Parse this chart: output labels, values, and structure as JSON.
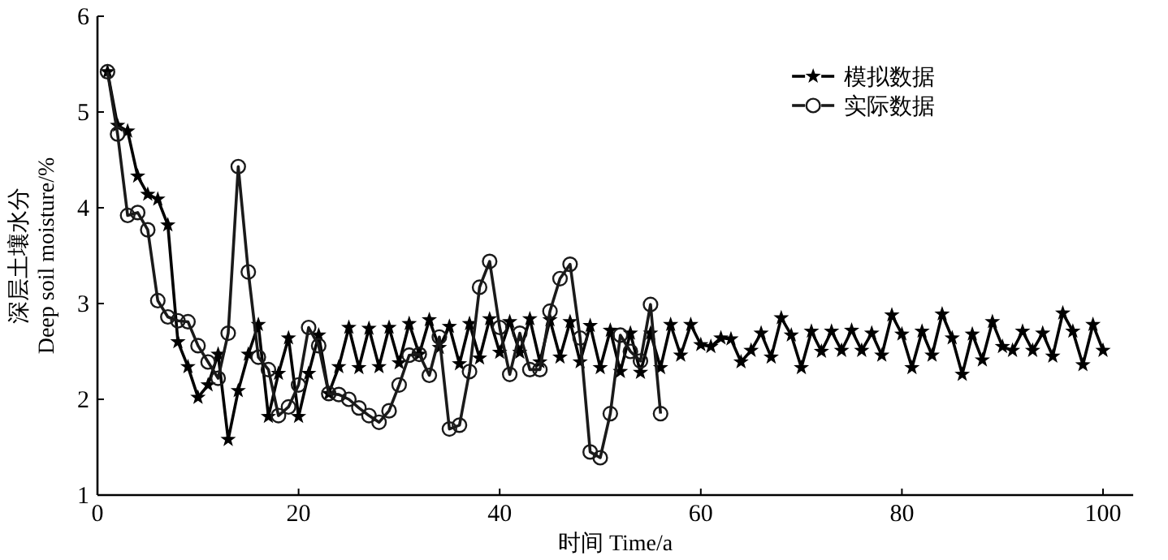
{
  "chart_data": {
    "type": "line",
    "xlabel": "时间 Time/a",
    "ylabel": "深层土壤水分\nDeep soil moisture/%",
    "xlim": [
      0,
      103
    ],
    "xticks": [
      0,
      20,
      40,
      60,
      80,
      100
    ],
    "ylim": [
      1,
      6
    ],
    "yticks": [
      1,
      2,
      3,
      4,
      5,
      6
    ],
    "grid": false,
    "legend": "top right",
    "series": [
      {
        "name": "模拟数据",
        "color": "#000000",
        "marker": "star",
        "x": [
          1,
          2,
          3,
          4,
          5,
          6,
          7,
          8,
          9,
          10,
          11,
          12,
          13,
          14,
          15,
          16,
          17,
          18,
          19,
          20,
          21,
          22,
          23,
          24,
          25,
          26,
          27,
          28,
          29,
          30,
          31,
          32,
          33,
          34,
          35,
          36,
          37,
          38,
          39,
          40,
          41,
          42,
          43,
          44,
          45,
          46,
          47,
          48,
          49,
          50,
          51,
          52,
          53,
          54,
          55,
          56,
          57,
          58,
          59,
          60,
          61,
          62,
          63,
          64,
          65,
          66,
          67,
          68,
          69,
          70,
          71,
          72,
          73,
          74,
          75,
          76,
          77,
          78,
          79,
          80,
          81,
          82,
          83,
          84,
          85,
          86,
          87,
          88,
          89,
          90,
          91,
          92,
          93,
          94,
          95,
          96,
          97,
          98,
          99,
          100
        ],
        "values": [
          5.42,
          4.86,
          4.8,
          4.33,
          4.14,
          4.09,
          3.82,
          2.6,
          2.34,
          2.02,
          2.15,
          2.47,
          1.58,
          2.09,
          2.47,
          2.78,
          1.82,
          2.27,
          2.64,
          1.82,
          2.27,
          2.67,
          2.06,
          2.34,
          2.75,
          2.33,
          2.74,
          2.34,
          2.75,
          2.38,
          2.79,
          2.47,
          2.83,
          2.54,
          2.76,
          2.37,
          2.79,
          2.43,
          2.84,
          2.49,
          2.81,
          2.49,
          2.84,
          2.39,
          2.83,
          2.44,
          2.81,
          2.39,
          2.77,
          2.33,
          2.72,
          2.29,
          2.69,
          2.28,
          2.69,
          2.33,
          2.78,
          2.46,
          2.78,
          2.57,
          2.55,
          2.64,
          2.63,
          2.39,
          2.51,
          2.69,
          2.44,
          2.85,
          2.67,
          2.33,
          2.71,
          2.5,
          2.71,
          2.51,
          2.72,
          2.51,
          2.69,
          2.46,
          2.88,
          2.68,
          2.33,
          2.71,
          2.46,
          2.89,
          2.64,
          2.26,
          2.68,
          2.41,
          2.81,
          2.55,
          2.51,
          2.71,
          2.51,
          2.69,
          2.45,
          2.9,
          2.71,
          2.36,
          2.78,
          2.51
        ]
      },
      {
        "name": "实际数据",
        "color": "#1a1a1a",
        "marker": "circle",
        "x": [
          1,
          2,
          3,
          4,
          5,
          6,
          7,
          8,
          9,
          10,
          11,
          12,
          13,
          14,
          15,
          16,
          17,
          18,
          19,
          20,
          21,
          22,
          23,
          24,
          25,
          26,
          27,
          28,
          29,
          30,
          31,
          32,
          33,
          34,
          35,
          36,
          37,
          38,
          39,
          40,
          41,
          42,
          43,
          44,
          45,
          46,
          47,
          48,
          49,
          50,
          51,
          52,
          53,
          54,
          55,
          56
        ],
        "values": [
          5.42,
          4.77,
          3.92,
          3.95,
          3.77,
          3.03,
          2.86,
          2.82,
          2.81,
          2.56,
          2.39,
          2.22,
          2.69,
          4.43,
          3.33,
          2.44,
          2.31,
          1.83,
          1.92,
          2.15,
          2.75,
          2.56,
          2.06,
          2.05,
          2.0,
          1.91,
          1.83,
          1.76,
          1.88,
          2.15,
          2.46,
          2.47,
          2.25,
          2.65,
          1.69,
          1.73,
          2.29,
          3.17,
          3.44,
          2.75,
          2.26,
          2.69,
          2.31,
          2.31,
          2.92,
          3.26,
          3.41,
          2.64,
          1.45,
          1.39,
          1.85,
          2.67,
          2.5,
          2.4,
          2.99,
          1.85
        ]
      }
    ]
  }
}
